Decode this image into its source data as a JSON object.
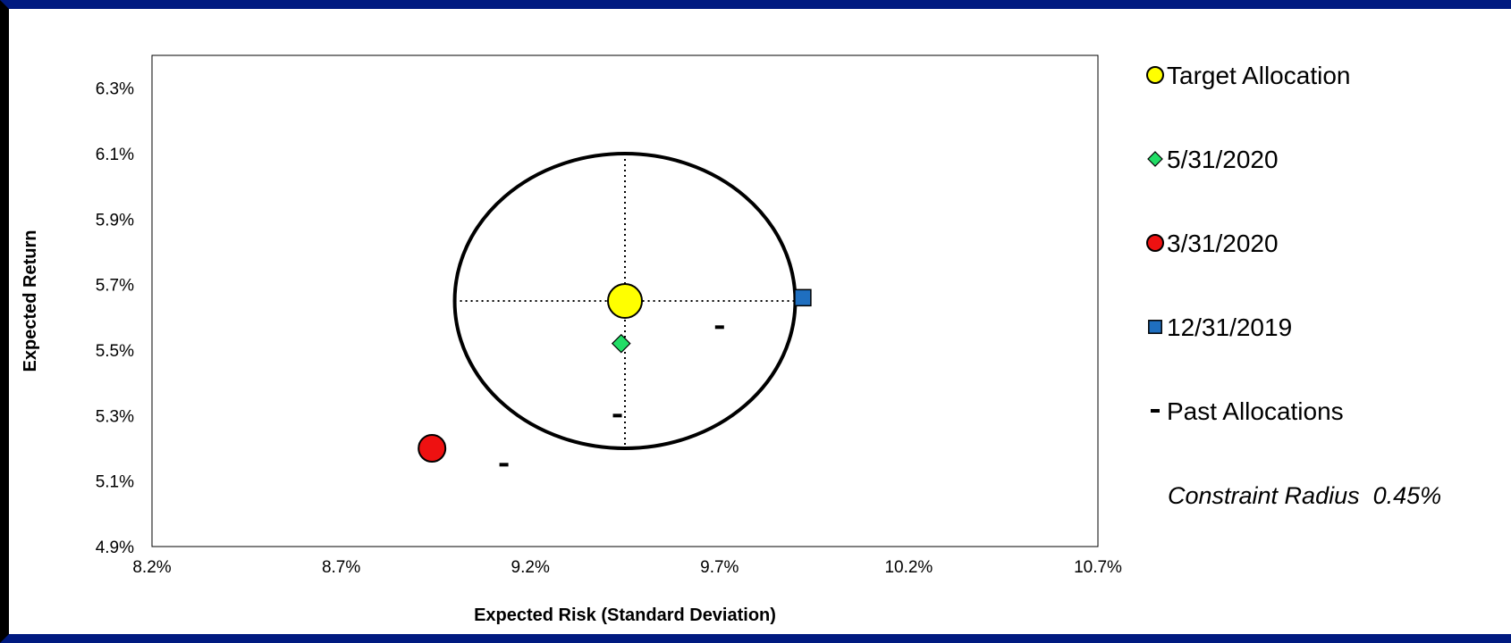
{
  "chart_data": {
    "type": "scatter",
    "title": "",
    "xlabel": "Expected Risk (Standard Deviation)",
    "ylabel": "Expected Return",
    "xlim": [
      8.2,
      10.7
    ],
    "ylim": [
      4.9,
      6.4
    ],
    "x_ticks": [
      "8.2%",
      "8.7%",
      "9.2%",
      "9.7%",
      "10.2%",
      "10.7%"
    ],
    "x_tick_values": [
      8.2,
      8.7,
      9.2,
      9.7,
      10.2,
      10.7
    ],
    "y_ticks": [
      "4.9%",
      "5.1%",
      "5.3%",
      "5.5%",
      "5.7%",
      "5.9%",
      "6.1%",
      "6.3%"
    ],
    "y_tick_values": [
      4.9,
      5.1,
      5.3,
      5.5,
      5.7,
      5.9,
      6.1,
      6.3
    ],
    "grid": false,
    "legend_position": "right",
    "series": [
      {
        "name": "Target Allocation",
        "marker": "circle-large",
        "color": "#ffff00",
        "points": [
          {
            "x": 9.45,
            "y": 5.65
          }
        ]
      },
      {
        "name": "5/31/2020",
        "marker": "diamond",
        "color": "#22dd66",
        "points": [
          {
            "x": 9.44,
            "y": 5.52
          }
        ]
      },
      {
        "name": "3/31/2020",
        "marker": "circle",
        "color": "#ee1111",
        "points": [
          {
            "x": 8.94,
            "y": 5.2
          }
        ]
      },
      {
        "name": "12/31/2019",
        "marker": "square",
        "color": "#1f6fc0",
        "points": [
          {
            "x": 9.92,
            "y": 5.66
          }
        ]
      },
      {
        "name": "Past Allocations",
        "marker": "dash",
        "color": "#000000",
        "points": [
          {
            "x": 9.7,
            "y": 5.57
          },
          {
            "x": 9.43,
            "y": 5.3
          },
          {
            "x": 9.13,
            "y": 5.15
          }
        ]
      }
    ],
    "constraint_circle": {
      "center_x": 9.45,
      "center_y": 5.65,
      "radius": 0.45
    },
    "annotation": "Constraint Radius  0.45%"
  }
}
